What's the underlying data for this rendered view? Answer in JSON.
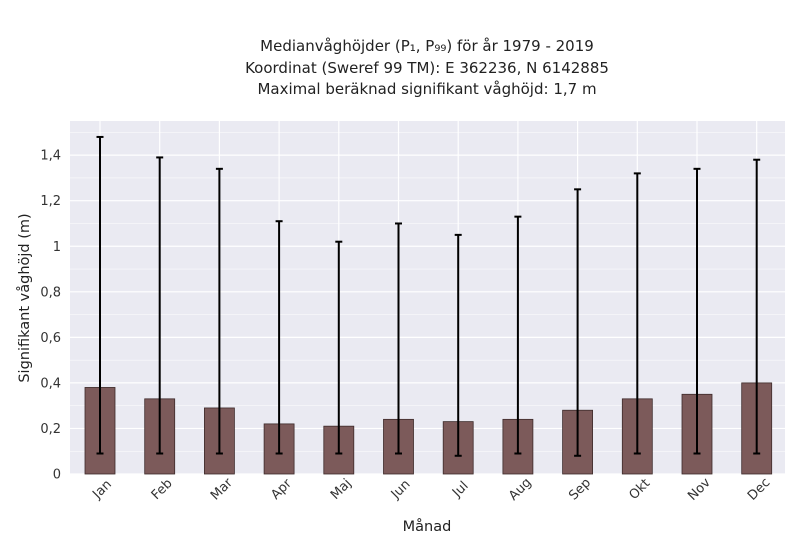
{
  "chart_data": {
    "type": "bar",
    "title_lines": [
      "Medianvåghöjder (P₁, P₉₉) för år 1979 - 2019",
      "Koordinat (Sweref 99 TM): E 362236, N 6142885",
      "Maximal beräknad signifikant våghöjd: 1,7 m"
    ],
    "xlabel": "Månad",
    "ylabel": "Signifikant våghöjd (m)",
    "categories": [
      "Jan",
      "Feb",
      "Mar",
      "Apr",
      "Maj",
      "Jun",
      "Jul",
      "Aug",
      "Sep",
      "Okt",
      "Nov",
      "Dec"
    ],
    "series": [
      {
        "values": [
          0.38,
          0.33,
          0.29,
          0.22,
          0.21,
          0.24,
          0.23,
          0.24,
          0.28,
          0.33,
          0.35,
          0.4
        ],
        "p1": [
          0.09,
          0.09,
          0.09,
          0.09,
          0.09,
          0.09,
          0.08,
          0.09,
          0.08,
          0.09,
          0.09,
          0.09
        ],
        "p99": [
          1.48,
          1.39,
          1.34,
          1.11,
          1.02,
          1.1,
          1.05,
          1.13,
          1.25,
          1.32,
          1.34,
          1.38
        ]
      }
    ],
    "ylim": [
      0,
      1.55
    ],
    "yticks": [
      {
        "value": 0,
        "label": "0"
      },
      {
        "value": 0.2,
        "label": "0,2"
      },
      {
        "value": 0.4,
        "label": "0,4"
      },
      {
        "value": 0.6,
        "label": "0,6"
      },
      {
        "value": 0.8,
        "label": "0,8"
      },
      {
        "value": 1.0,
        "label": "1"
      },
      {
        "value": 1.2,
        "label": "1,2"
      },
      {
        "value": 1.4,
        "label": "1,4"
      }
    ],
    "grid": true,
    "colors": {
      "bar_fill": "#7c5a5a",
      "bar_edge": "#3d2a2a",
      "error_bar": "#000000",
      "plot_background": "#eaeaf2",
      "grid": "#ffffff"
    }
  }
}
